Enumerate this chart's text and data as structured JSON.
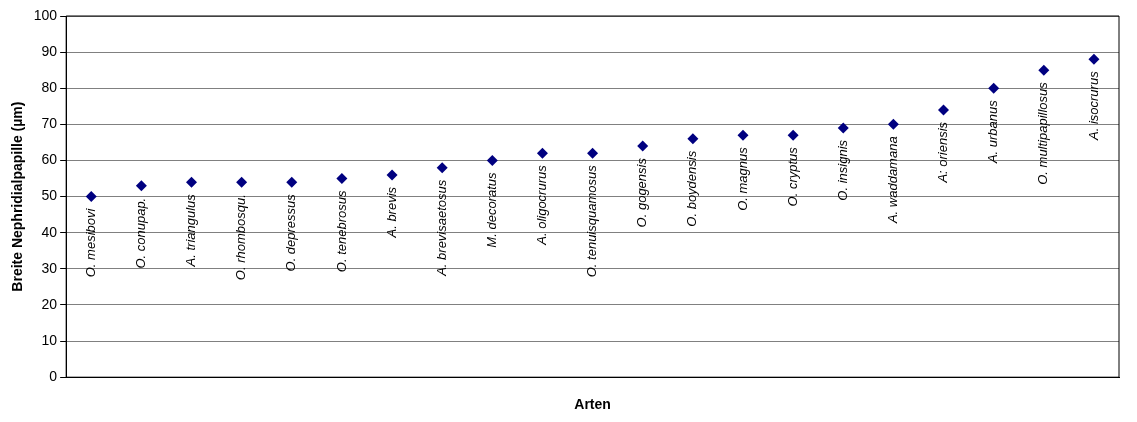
{
  "chart_data": {
    "type": "scatter",
    "xlabel": "Arten",
    "ylabel": "Breite Nephridialpapille (µm)",
    "categories": [
      "O. mesibovi",
      "O. conupap.",
      "A. triangulus",
      "O. rhombosqu.",
      "O. depressus",
      "O. tenebrosus",
      "A. brevis",
      "A. brevisaetosus",
      "M. decoratus",
      "A. oligocrurus",
      "O. tenuisquamosus",
      "O. gogensis",
      "O. boydensis",
      "O. magnus",
      "O. cryptus",
      "O. insignis",
      "A. waddamana",
      "A: oriensis",
      "A. urbanus",
      "O. multipapillosus",
      "A. isocrurus"
    ],
    "series": [
      {
        "color": "#000080",
        "values": [
          50,
          53,
          54,
          54,
          54,
          55,
          56,
          58,
          60,
          62,
          62,
          64,
          66,
          67,
          67,
          69,
          70,
          74,
          80,
          85,
          88
        ]
      }
    ],
    "ylim": [
      0,
      100
    ],
    "yticks": [
      0,
      10,
      20,
      30,
      40,
      50,
      60,
      70,
      80,
      90,
      100
    ],
    "grid": "y",
    "legend": false,
    "marker": "diamond"
  }
}
